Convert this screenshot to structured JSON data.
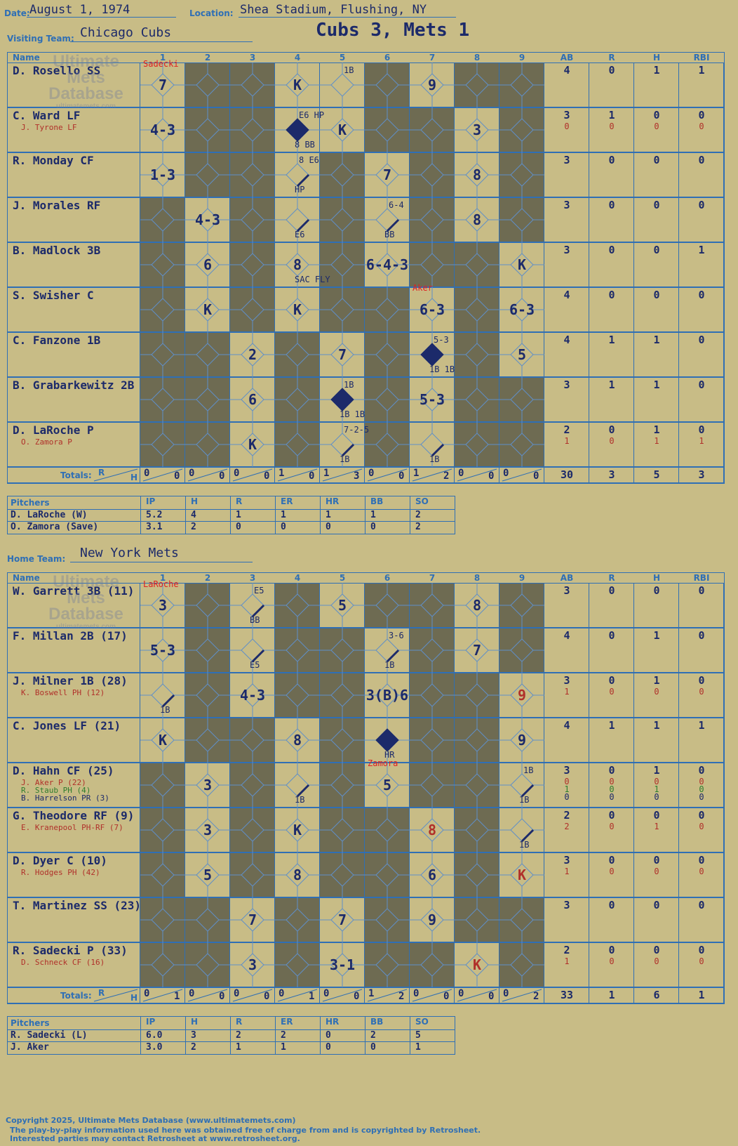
{
  "header": {
    "date_label": "Date:",
    "date": "August 1, 1974",
    "location_label": "Location:",
    "location": "Shea Stadium, Flushing, NY",
    "game_title": "Cubs 3, Mets 1",
    "visiting_label": "Visiting Team:",
    "visiting_team": "Chicago Cubs",
    "home_label": "Home Team:",
    "home_team": "New York Mets"
  },
  "columns": {
    "name": "Name",
    "innings": [
      "1",
      "2",
      "3",
      "4",
      "5",
      "6",
      "7",
      "8",
      "9"
    ],
    "stats": [
      "AB",
      "R",
      "H",
      "RBI"
    ],
    "totals_label": "Totals:",
    "rh_r": "R",
    "rh_h": "H"
  },
  "watermark": {
    "line1": "Ultimate",
    "line2": "Mets",
    "line3": "Database",
    "url": "ultimatemets.com"
  },
  "visitors": {
    "starter_marker": "Sadecki",
    "batters": [
      {
        "name": "D. Rosello SS",
        "sub": "",
        "stats": [
          "4",
          "0",
          "1",
          "1"
        ],
        "sub_stats": [
          "",
          "",
          "",
          ""
        ]
      },
      {
        "name": "C. Ward LF",
        "sub": "J. Tyrone LF",
        "stats": [
          "3",
          "1",
          "0",
          "0"
        ],
        "sub_stats": [
          "0",
          "0",
          "0",
          "0"
        ]
      },
      {
        "name": "R. Monday CF",
        "sub": "",
        "stats": [
          "3",
          "0",
          "0",
          "0"
        ],
        "sub_stats": [
          "",
          "",
          "",
          ""
        ]
      },
      {
        "name": "J. Morales RF",
        "sub": "",
        "stats": [
          "3",
          "0",
          "0",
          "0"
        ],
        "sub_stats": [
          "",
          "",
          "",
          ""
        ]
      },
      {
        "name": "B. Madlock 3B",
        "sub": "",
        "stats": [
          "3",
          "0",
          "0",
          "1"
        ],
        "sub_stats": [
          "",
          "",
          "",
          ""
        ]
      },
      {
        "name": "S. Swisher C",
        "sub": "",
        "stats": [
          "4",
          "0",
          "0",
          "0"
        ],
        "sub_stats": [
          "",
          "",
          "",
          ""
        ]
      },
      {
        "name": "C. Fanzone 1B",
        "sub": "",
        "stats": [
          "4",
          "1",
          "1",
          "0"
        ],
        "sub_stats": [
          "",
          "",
          "",
          ""
        ]
      },
      {
        "name": "B. Grabarkewitz 2B",
        "sub": "",
        "stats": [
          "3",
          "1",
          "1",
          "0"
        ],
        "sub_stats": [
          "",
          "",
          "",
          ""
        ]
      },
      {
        "name": "D. LaRoche P",
        "sub": "O. Zamora P",
        "stats": [
          "2",
          "0",
          "1",
          "0"
        ],
        "sub_stats": [
          "1",
          "0",
          "1",
          "1"
        ]
      }
    ],
    "plays": [
      {
        "r": 0,
        "c": 0,
        "t": "7"
      },
      {
        "r": 0,
        "c": 3,
        "t": "K"
      },
      {
        "r": 0,
        "c": 4,
        "t": "",
        "mark": "1B"
      },
      {
        "r": 0,
        "c": 6,
        "t": "9"
      },
      {
        "r": 1,
        "c": 0,
        "t": "4-3"
      },
      {
        "r": 1,
        "c": 3,
        "t": "",
        "mark": "E6 HP",
        "scored": true,
        "note": "8 BB"
      },
      {
        "r": 1,
        "c": 4,
        "t": "K"
      },
      {
        "r": 1,
        "c": 7,
        "t": "3"
      },
      {
        "r": 2,
        "c": 0,
        "t": "1-3"
      },
      {
        "r": 2,
        "c": 3,
        "t": "",
        "mark": "8 E6",
        "note": "HP"
      },
      {
        "r": 2,
        "c": 5,
        "t": "7"
      },
      {
        "r": 2,
        "c": 7,
        "t": "8"
      },
      {
        "r": 3,
        "c": 1,
        "t": "4-3"
      },
      {
        "r": 3,
        "c": 3,
        "t": "",
        "note": "E6"
      },
      {
        "r": 3,
        "c": 5,
        "t": "",
        "mark": "6-4",
        "note": "BB"
      },
      {
        "r": 3,
        "c": 7,
        "t": "8"
      },
      {
        "r": 4,
        "c": 1,
        "t": "6"
      },
      {
        "r": 4,
        "c": 3,
        "t": "8",
        "note": "SAC FLY"
      },
      {
        "r": 4,
        "c": 5,
        "t": "6-4-3"
      },
      {
        "r": 4,
        "c": 8,
        "t": "K"
      },
      {
        "r": 5,
        "c": 1,
        "t": "K"
      },
      {
        "r": 5,
        "c": 3,
        "t": "K"
      },
      {
        "r": 5,
        "c": 6,
        "t": "6-3"
      },
      {
        "r": 5,
        "c": 8,
        "t": "6-3"
      },
      {
        "r": 6,
        "c": 2,
        "t": "2"
      },
      {
        "r": 6,
        "c": 4,
        "t": "7"
      },
      {
        "r": 6,
        "c": 6,
        "t": "",
        "mark": "5-3",
        "scored": true,
        "note": "1B 1B"
      },
      {
        "r": 6,
        "c": 8,
        "t": "5"
      },
      {
        "r": 7,
        "c": 2,
        "t": "6"
      },
      {
        "r": 7,
        "c": 4,
        "t": "",
        "mark": "1B",
        "scored": true,
        "note": "1B 1B"
      },
      {
        "r": 7,
        "c": 6,
        "t": "5-3"
      },
      {
        "r": 8,
        "c": 2,
        "t": "K"
      },
      {
        "r": 8,
        "c": 4,
        "t": "",
        "mark": "7-2-5",
        "note": "1B"
      },
      {
        "r": 8,
        "c": 6,
        "t": "",
        "note": "1B"
      }
    ],
    "pitch_change_marker": "Aker",
    "totals": [
      [
        "0",
        "0"
      ],
      [
        "0",
        "0"
      ],
      [
        "0",
        "0"
      ],
      [
        "1",
        "0"
      ],
      [
        "1",
        "3"
      ],
      [
        "0",
        "0"
      ],
      [
        "1",
        "2"
      ],
      [
        "0",
        "0"
      ],
      [
        "0",
        "0"
      ]
    ],
    "totals_stats": [
      "30",
      "3",
      "5",
      "3"
    ],
    "pitchers_label": "Pitchers",
    "pitcher_cols": [
      "IP",
      "H",
      "R",
      "ER",
      "HR",
      "BB",
      "SO"
    ],
    "pitchers": [
      {
        "name": "D. LaRoche (W)",
        "stats": [
          "5.2",
          "4",
          "1",
          "1",
          "1",
          "1",
          "2"
        ]
      },
      {
        "name": "O. Zamora (Save)",
        "stats": [
          "3.1",
          "2",
          "0",
          "0",
          "0",
          "0",
          "2"
        ]
      }
    ]
  },
  "home": {
    "starter_marker": "LaRoche",
    "batters": [
      {
        "name": "W. Garrett 3B (11)",
        "sub": "",
        "stats": [
          "3",
          "0",
          "0",
          "0"
        ],
        "sub_stats": [
          "",
          "",
          "",
          ""
        ]
      },
      {
        "name": "F. Millan 2B (17)",
        "sub": "",
        "stats": [
          "4",
          "0",
          "1",
          "0"
        ],
        "sub_stats": [
          "",
          "",
          "",
          ""
        ]
      },
      {
        "name": "J. Milner 1B (28)",
        "sub": "K. Boswell PH (12)",
        "stats": [
          "3",
          "0",
          "1",
          "0"
        ],
        "sub_stats": [
          "1",
          "0",
          "0",
          "0"
        ]
      },
      {
        "name": "C. Jones LF (21)",
        "sub": "",
        "stats": [
          "4",
          "1",
          "1",
          "1"
        ],
        "sub_stats": [
          "",
          "",
          "",
          ""
        ]
      },
      {
        "name": "D. Hahn CF (25)",
        "sub": "J. Aker P (22)",
        "sub2": "R. Staub PH (4)",
        "sub3": "B. Harrelson PR (3)",
        "stats": [
          "3",
          "0",
          "1",
          "0"
        ],
        "sub_stats": [
          "0",
          "0",
          "0",
          "0"
        ]
      },
      {
        "name": "G. Theodore RF (9)",
        "sub": "E. Kranepool PH-RF (7)",
        "stats": [
          "2",
          "0",
          "0",
          "0"
        ],
        "sub_stats": [
          "2",
          "0",
          "1",
          "0"
        ]
      },
      {
        "name": "D. Dyer C (10)",
        "sub": "R. Hodges PH (42)",
        "stats": [
          "3",
          "0",
          "0",
          "0"
        ],
        "sub_stats": [
          "1",
          "0",
          "0",
          "0"
        ]
      },
      {
        "name": "T. Martinez SS (23)",
        "sub": "",
        "stats": [
          "3",
          "0",
          "0",
          "0"
        ],
        "sub_stats": [
          "",
          "",
          "",
          ""
        ]
      },
      {
        "name": "R. Sadecki P (33)",
        "sub": "D. Schneck CF (16)",
        "stats": [
          "2",
          "0",
          "0",
          "0"
        ],
        "sub_stats": [
          "1",
          "0",
          "0",
          "0"
        ]
      }
    ],
    "hahn_extra_stats": [
      [
        "1",
        "0",
        "1",
        "0"
      ],
      [
        "0",
        "0",
        "0",
        "0"
      ]
    ],
    "plays": [
      {
        "r": 0,
        "c": 0,
        "t": "3"
      },
      {
        "r": 0,
        "c": 2,
        "t": "",
        "mark": "E5",
        "note": "BB"
      },
      {
        "r": 0,
        "c": 4,
        "t": "5"
      },
      {
        "r": 0,
        "c": 7,
        "t": "8"
      },
      {
        "r": 1,
        "c": 0,
        "t": "5-3"
      },
      {
        "r": 1,
        "c": 2,
        "t": "",
        "note": "E5"
      },
      {
        "r": 1,
        "c": 5,
        "t": "",
        "mark": "3-6",
        "note": "1B"
      },
      {
        "r": 1,
        "c": 7,
        "t": "7"
      },
      {
        "r": 2,
        "c": 0,
        "t": "",
        "note": "1B"
      },
      {
        "r": 2,
        "c": 2,
        "t": "4-3"
      },
      {
        "r": 2,
        "c": 5,
        "t": "3(B)6"
      },
      {
        "r": 2,
        "c": 8,
        "t": "9",
        "red": true
      },
      {
        "r": 3,
        "c": 0,
        "t": "K"
      },
      {
        "r": 3,
        "c": 3,
        "t": "8"
      },
      {
        "r": 3,
        "c": 5,
        "t": "",
        "scored": true,
        "note": "HR"
      },
      {
        "r": 3,
        "c": 8,
        "t": "9"
      },
      {
        "r": 4,
        "c": 1,
        "t": "3"
      },
      {
        "r": 4,
        "c": 3,
        "t": "",
        "note": "1B"
      },
      {
        "r": 4,
        "c": 5,
        "t": "5"
      },
      {
        "r": 4,
        "c": 8,
        "t": "",
        "mark": "1B",
        "note": "1B"
      },
      {
        "r": 5,
        "c": 1,
        "t": "3"
      },
      {
        "r": 5,
        "c": 3,
        "t": "K"
      },
      {
        "r": 5,
        "c": 6,
        "t": "8",
        "red": true
      },
      {
        "r": 5,
        "c": 8,
        "t": "",
        "note": "1B"
      },
      {
        "r": 6,
        "c": 1,
        "t": "5"
      },
      {
        "r": 6,
        "c": 3,
        "t": "8"
      },
      {
        "r": 6,
        "c": 6,
        "t": "6"
      },
      {
        "r": 6,
        "c": 8,
        "t": "K",
        "red": true
      },
      {
        "r": 7,
        "c": 2,
        "t": "7"
      },
      {
        "r": 7,
        "c": 4,
        "t": "7"
      },
      {
        "r": 7,
        "c": 6,
        "t": "9"
      },
      {
        "r": 8,
        "c": 2,
        "t": "3"
      },
      {
        "r": 8,
        "c": 4,
        "t": "3-1"
      },
      {
        "r": 8,
        "c": 7,
        "t": "K",
        "red": true
      }
    ],
    "pitch_change_marker": "Zamora",
    "totals": [
      [
        "0",
        "1"
      ],
      [
        "0",
        "0"
      ],
      [
        "0",
        "0"
      ],
      [
        "0",
        "1"
      ],
      [
        "0",
        "0"
      ],
      [
        "1",
        "2"
      ],
      [
        "0",
        "0"
      ],
      [
        "0",
        "0"
      ],
      [
        "0",
        "2"
      ]
    ],
    "totals_stats": [
      "33",
      "1",
      "6",
      "1"
    ],
    "pitchers_label": "Pitchers",
    "pitcher_cols": [
      "IP",
      "H",
      "R",
      "ER",
      "HR",
      "BB",
      "SO"
    ],
    "pitchers": [
      {
        "name": "R. Sadecki (L)",
        "stats": [
          "6.0",
          "3",
          "2",
          "2",
          "0",
          "2",
          "5"
        ]
      },
      {
        "name": "J. Aker",
        "stats": [
          "3.0",
          "2",
          "1",
          "1",
          "0",
          "0",
          "1"
        ]
      }
    ]
  },
  "footer": {
    "line1": "Copyright 2025, Ultimate Mets Database (www.ultimatemets.com)",
    "line2": "The play-by-play information used here was obtained free of charge from and is copyrighted by Retrosheet.",
    "line3": "Interested parties may contact Retrosheet at www.retrosheet.org."
  }
}
